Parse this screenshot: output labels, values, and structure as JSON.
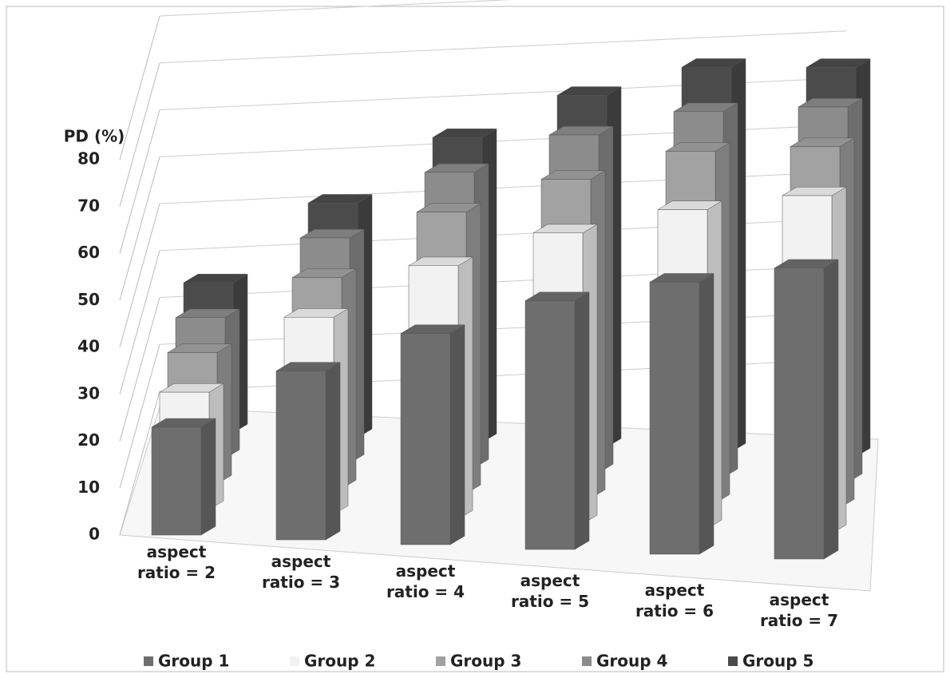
{
  "chart_data": {
    "type": "bar3d",
    "y_label": "PD (%)",
    "categories": [
      "aspect ratio = 2",
      "aspect ratio = 3",
      "aspect ratio = 4",
      "aspect ratio = 5",
      "aspect ratio = 6",
      "aspect ratio = 7"
    ],
    "series": [
      {
        "name": "Group 1",
        "color": "#6e6e6e",
        "values": [
          23,
          36,
          45,
          53,
          58,
          62
        ]
      },
      {
        "name": "Group 2",
        "color": "#f2f2f2",
        "values": [
          25,
          42,
          54,
          62,
          68,
          72
        ]
      },
      {
        "name": "Group 3",
        "color": "#a2a2a2",
        "values": [
          28,
          45,
          60,
          68,
          75,
          77
        ]
      },
      {
        "name": "Group 4",
        "color": "#8c8c8c",
        "values": [
          30,
          48,
          63,
          72,
          78,
          80
        ]
      },
      {
        "name": "Group 5",
        "color": "#4b4b4b",
        "values": [
          32,
          50,
          65,
          75,
          82,
          83
        ]
      }
    ],
    "ylim": [
      0,
      80
    ],
    "yticks": [
      0,
      10,
      20,
      30,
      40,
      50,
      60,
      70,
      80
    ],
    "grid": true,
    "legend": "bottom"
  }
}
